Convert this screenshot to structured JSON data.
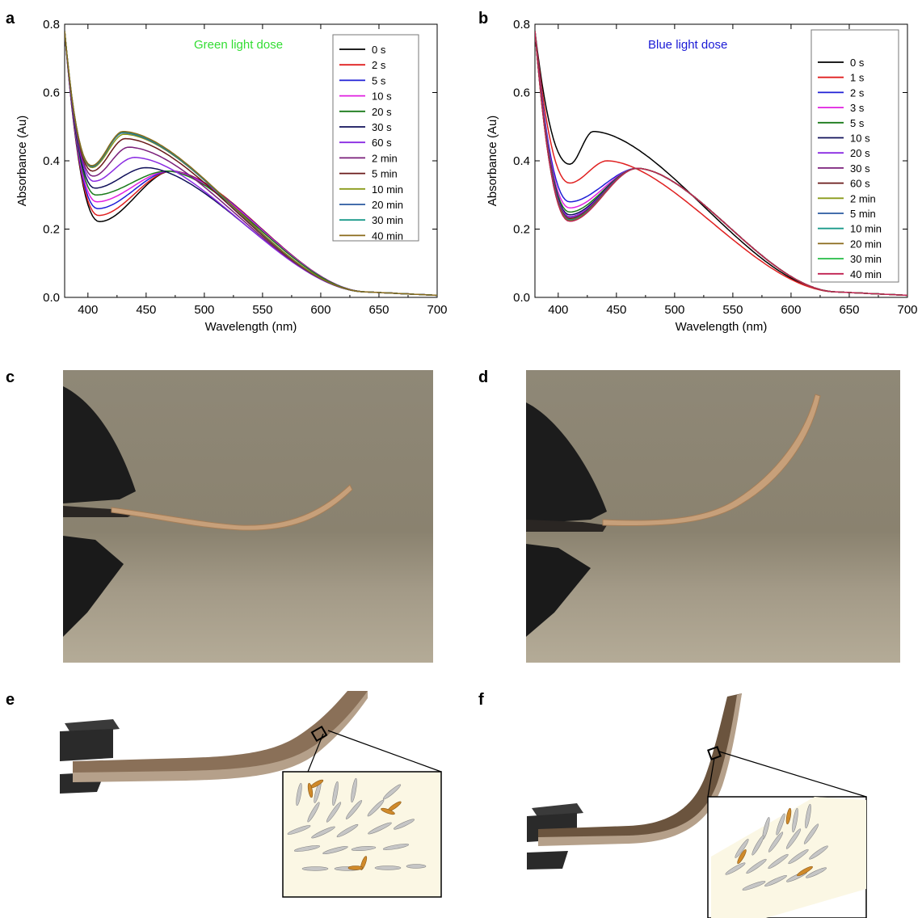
{
  "panel_letters": {
    "a": "a",
    "b": "b",
    "c": "c",
    "d": "d",
    "e": "e",
    "f": "f"
  },
  "chart_data": [
    {
      "type": "line",
      "panel": "a",
      "annotation": "Green light dose",
      "annotation_color": "#33dd33",
      "xlabel": "Wavelength (nm)",
      "ylabel": "Absorbance (Au)",
      "xlim": [
        380,
        700
      ],
      "ylim": [
        0,
        0.8
      ],
      "xticks": [
        400,
        450,
        500,
        550,
        600,
        650,
        700
      ],
      "yticks": [
        0.0,
        0.2,
        0.4,
        0.6,
        0.8
      ],
      "ytick_labels": [
        "0.0",
        "0.2",
        "0.4",
        "0.6",
        "0.8"
      ],
      "legend_position": "top-right",
      "isosbestic_point": [
        470,
        0.37
      ],
      "series": [
        {
          "name": "0 s",
          "color": "#000000",
          "min_value": 0.222,
          "peak_value": 0.37,
          "peak_x": 472
        },
        {
          "name": "2 s",
          "color": "#e02020",
          "min_value": 0.24,
          "peak_value": 0.37,
          "peak_x": 472
        },
        {
          "name": "5 s",
          "color": "#1f1fd6",
          "min_value": 0.26,
          "peak_value": 0.37,
          "peak_x": 471
        },
        {
          "name": "10 s",
          "color": "#e020e0",
          "min_value": 0.28,
          "peak_value": 0.37,
          "peak_x": 470
        },
        {
          "name": "20 s",
          "color": "#1a7a1a",
          "min_value": 0.3,
          "peak_value": 0.37,
          "peak_x": 468
        },
        {
          "name": "30 s",
          "color": "#10105a",
          "min_value": 0.32,
          "peak_value": 0.38,
          "peak_x": 450
        },
        {
          "name": "60 s",
          "color": "#8a2be2",
          "min_value": 0.34,
          "peak_value": 0.41,
          "peak_x": 440
        },
        {
          "name": "2 min",
          "color": "#7a1f7a",
          "min_value": 0.355,
          "peak_value": 0.44,
          "peak_x": 435
        },
        {
          "name": "5 min",
          "color": "#6a1a1a",
          "min_value": 0.37,
          "peak_value": 0.465,
          "peak_x": 432
        },
        {
          "name": "10 min",
          "color": "#8a9a1a",
          "min_value": 0.38,
          "peak_value": 0.478,
          "peak_x": 431
        },
        {
          "name": "20 min",
          "color": "#2a5aa0",
          "min_value": 0.383,
          "peak_value": 0.482,
          "peak_x": 430
        },
        {
          "name": "30 min",
          "color": "#1a9a8a",
          "min_value": 0.385,
          "peak_value": 0.484,
          "peak_x": 430
        },
        {
          "name": "40 min",
          "color": "#8a6a1a",
          "min_value": 0.386,
          "peak_value": 0.486,
          "peak_x": 430
        }
      ]
    },
    {
      "type": "line",
      "panel": "b",
      "annotation": "Blue light dose",
      "annotation_color": "#1a1ad6",
      "xlabel": "Wavelength (nm)",
      "ylabel": "Absorbance (Au)",
      "xlim": [
        380,
        700
      ],
      "ylim": [
        0,
        0.8
      ],
      "xticks": [
        400,
        450,
        500,
        550,
        600,
        650,
        700
      ],
      "yticks": [
        0.0,
        0.2,
        0.4,
        0.6,
        0.8
      ],
      "ytick_labels": [
        "0.0",
        "0.2",
        "0.4",
        "0.6",
        "0.8"
      ],
      "legend_position": "top-right",
      "isosbestic_point": [
        468,
        0.378
      ],
      "series": [
        {
          "name": "0 s",
          "color": "#000000",
          "min_value": 0.39,
          "peak_value": 0.486,
          "peak_x": 430
        },
        {
          "name": "1 s",
          "color": "#e02020",
          "min_value": 0.335,
          "peak_value": 0.4,
          "peak_x": 442
        },
        {
          "name": "2 s",
          "color": "#1f1fd6",
          "min_value": 0.28,
          "peak_value": 0.378,
          "peak_x": 468
        },
        {
          "name": "3 s",
          "color": "#e020e0",
          "min_value": 0.262,
          "peak_value": 0.378,
          "peak_x": 468
        },
        {
          "name": "5 s",
          "color": "#1a7a1a",
          "min_value": 0.25,
          "peak_value": 0.378,
          "peak_x": 468
        },
        {
          "name": "10 s",
          "color": "#10105a",
          "min_value": 0.242,
          "peak_value": 0.378,
          "peak_x": 468
        },
        {
          "name": "20 s",
          "color": "#8a2be2",
          "min_value": 0.237,
          "peak_value": 0.378,
          "peak_x": 468
        },
        {
          "name": "30 s",
          "color": "#7a1f7a",
          "min_value": 0.233,
          "peak_value": 0.378,
          "peak_x": 468
        },
        {
          "name": "60 s",
          "color": "#6a1a1a",
          "min_value": 0.23,
          "peak_value": 0.378,
          "peak_x": 468
        },
        {
          "name": "2 min",
          "color": "#8a9a1a",
          "min_value": 0.228,
          "peak_value": 0.378,
          "peak_x": 468
        },
        {
          "name": "5 min",
          "color": "#2a5aa0",
          "min_value": 0.227,
          "peak_value": 0.378,
          "peak_x": 468
        },
        {
          "name": "10 min",
          "color": "#1a9a8a",
          "min_value": 0.226,
          "peak_value": 0.378,
          "peak_x": 468
        },
        {
          "name": "20 min",
          "color": "#8a6a1a",
          "min_value": 0.225,
          "peak_value": 0.378,
          "peak_x": 468
        },
        {
          "name": "30 min",
          "color": "#22bb44",
          "min_value": 0.224,
          "peak_value": 0.378,
          "peak_x": 468
        },
        {
          "name": "40 min",
          "color": "#c02050",
          "min_value": 0.223,
          "peak_value": 0.378,
          "peak_x": 468
        }
      ]
    }
  ],
  "photo_colors": {
    "background": "#8e8675",
    "film": "#c7a07a",
    "clamp": "#1c1c1c"
  },
  "diagram_colors": {
    "film_light": "#b5a08a",
    "film_dark": "#6b543e",
    "inset_bg": "#fbf7e4",
    "rod_gray": "#c8c8c8",
    "rod_orange": "#d08a2a",
    "clamp": "#2a2a2a"
  }
}
